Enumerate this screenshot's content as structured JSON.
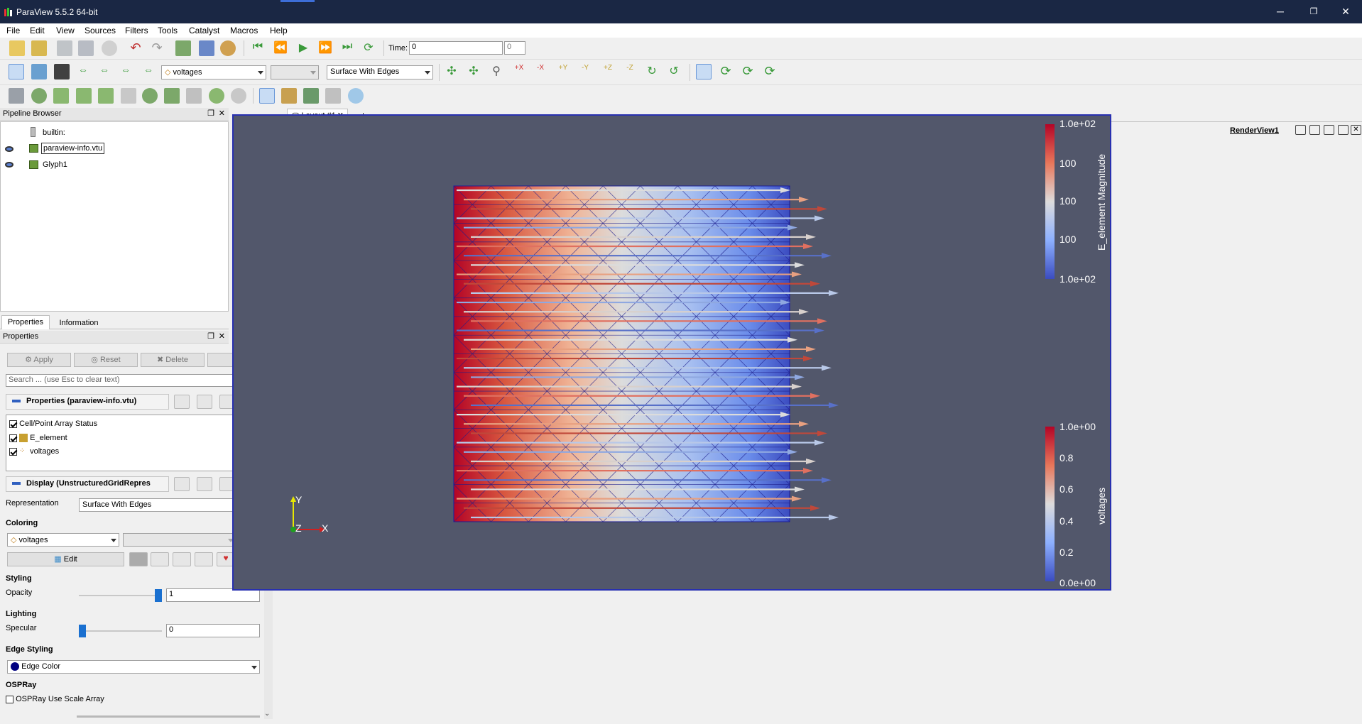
{
  "window": {
    "title": "ParaView 5.5.2 64-bit",
    "minimize": "─",
    "restore": "❐",
    "close": "✕"
  },
  "menu": [
    "File",
    "Edit",
    "View",
    "Sources",
    "Filters",
    "Tools",
    "Catalyst",
    "Macros",
    "Help"
  ],
  "toolbar": {
    "time_label": "Time:",
    "time_value": "0",
    "time_index": "0",
    "color_array": "voltages",
    "representation": "Surface With Edges"
  },
  "pipeline": {
    "title": "Pipeline Browser",
    "items": [
      "builtin:",
      "paraview-info.vtu",
      "Glyph1"
    ]
  },
  "panel_tabs": [
    "Properties",
    "Information"
  ],
  "properties": {
    "title": "Properties",
    "apply": "Apply",
    "reset": "Reset",
    "delete": "Delete",
    "help": "?",
    "search_placeholder": "Search ... (use Esc to clear text)",
    "section_properties": "Properties (paraview-info.vtu)",
    "array_status": "Cell/Point Array Status",
    "arrays": [
      "E_element",
      "voltages"
    ],
    "section_display": "Display (UnstructuredGridRepres",
    "representation_label": "Representation",
    "representation_value": "Surface With Edges",
    "coloring_header": "Coloring",
    "coloring_value": "voltages",
    "edit": "Edit",
    "styling_header": "Styling",
    "opacity_label": "Opacity",
    "opacity_value": "1",
    "opacity_level": 1.0,
    "lighting_header": "Lighting",
    "specular_label": "Specular",
    "specular_value": "0",
    "specular_level": 0.0,
    "edge_header": "Edge Styling",
    "edge_color": "Edge Color",
    "ospray_header": "OSPRay",
    "ospray_scale": "OSPRay Use Scale Array"
  },
  "layout": {
    "tab": "Layout #1",
    "add": "+",
    "twod": "2D",
    "render_view": "RenderView1"
  },
  "viewport": {
    "colorbar_top": {
      "title": "E_element Magnitude",
      "ticks": [
        "1.0e+02",
        "100",
        "100",
        "100",
        "1.0e+02"
      ]
    },
    "colorbar_bottom": {
      "title": "voltages",
      "ticks": [
        "1.0e+00",
        "0.8",
        "0.6",
        "0.4",
        "0.2",
        "0.0e+00"
      ]
    },
    "axes": {
      "y": "Y",
      "z": "Z",
      "x": "X"
    }
  },
  "colors": {
    "titlebar": "#1a2744",
    "background": "#52576b",
    "accent": "#2830b0",
    "red": "#b40426",
    "blue": "#3b4cc0"
  }
}
